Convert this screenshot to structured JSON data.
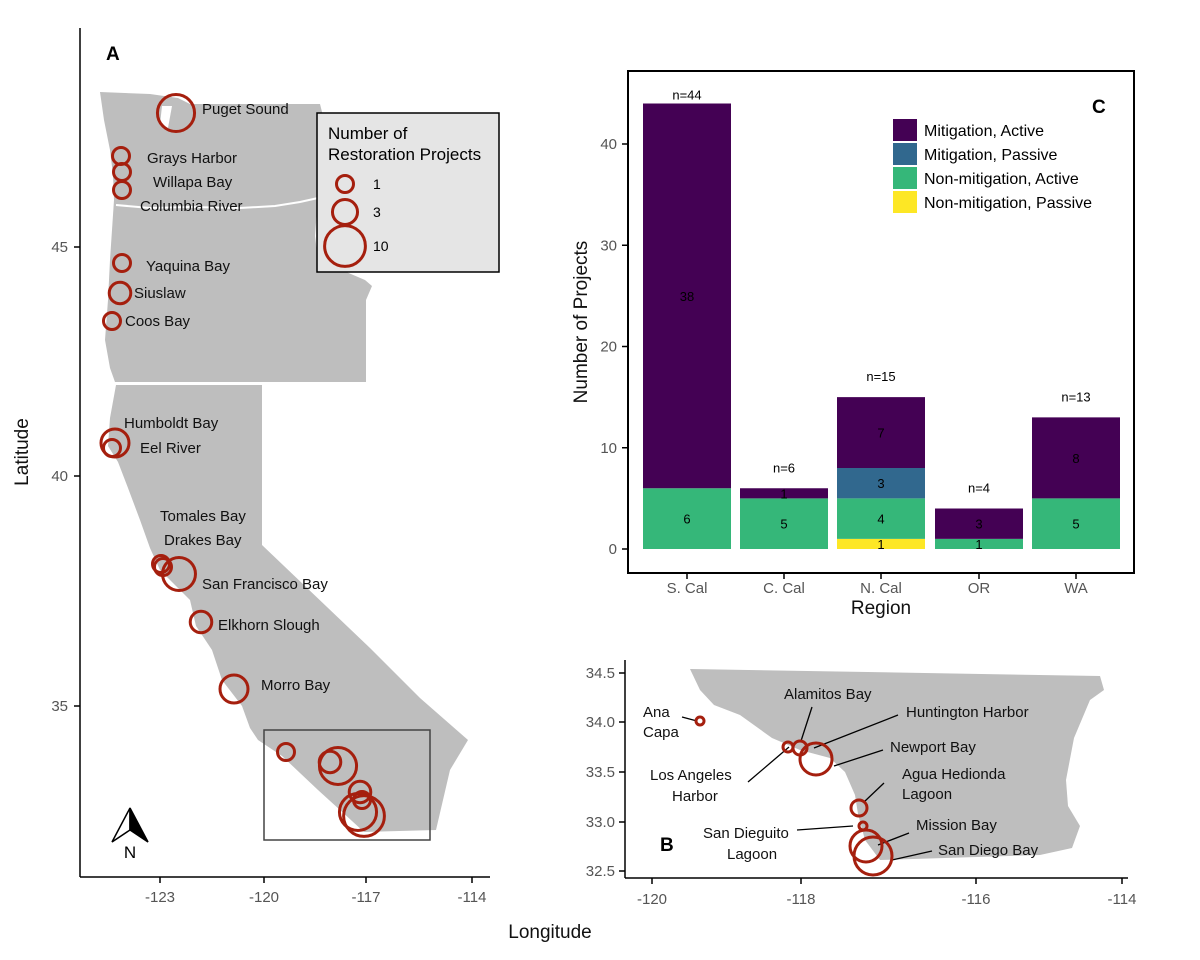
{
  "figure": {
    "panel_a": "A",
    "panel_b": "B",
    "panel_c": "C",
    "north_label": "N"
  },
  "colors": {
    "land": "#bebebe",
    "circle": "#a51f0e",
    "mitigation_active": "#440154",
    "mitigation_passive": "#31688e",
    "nonmitigation_active": "#35b779",
    "nonmitigation_passive": "#fde725"
  },
  "map_a": {
    "xlabel": "Longitude",
    "ylabel": "Latitude",
    "xticks": [
      "-123",
      "-120",
      "-117",
      "-114"
    ],
    "yticks": [
      "35",
      "40",
      "45"
    ],
    "legend": {
      "title_line1": "Number of",
      "title_line2": "Restoration Projects",
      "items": [
        {
          "label": "1",
          "value": 1
        },
        {
          "label": "3",
          "value": 3
        },
        {
          "label": "10",
          "value": 10
        }
      ]
    },
    "sites": [
      {
        "name": "Puget Sound",
        "projects": 8
      },
      {
        "name": "Grays Harbor",
        "projects": 1
      },
      {
        "name": "Willapa Bay",
        "projects": 1
      },
      {
        "name": "Columbia River",
        "projects": 1
      },
      {
        "name": "Yaquina Bay",
        "projects": 1
      },
      {
        "name": "Siuslaw",
        "projects": 2
      },
      {
        "name": "Coos Bay",
        "projects": 1
      },
      {
        "name": "Humboldt Bay",
        "projects": 4
      },
      {
        "name": "Eel River",
        "projects": 1
      },
      {
        "name": "Tomales Bay",
        "projects": 1
      },
      {
        "name": "Drakes Bay",
        "projects": 1
      },
      {
        "name": "San Francisco Bay",
        "projects": 6
      },
      {
        "name": "Elkhorn Slough",
        "projects": 2
      },
      {
        "name": "Morro Bay",
        "projects": 4
      }
    ]
  },
  "map_b": {
    "xticks": [
      "-120",
      "-118",
      "-116",
      "-114"
    ],
    "yticks": [
      "32.5",
      "33.0",
      "33.5",
      "34.0",
      "34.5"
    ],
    "labels": {
      "ana_capa_1": "Ana",
      "ana_capa_2": "Capa",
      "alamitos": "Alamitos Bay",
      "huntington": "Huntington Harbor",
      "newport": "Newport Bay",
      "agua_1": "Agua Hedionda",
      "agua_2": "Lagoon",
      "la_1": "Los Angeles",
      "la_2": "Harbor",
      "mission": "Mission Bay",
      "sandieguito_1": "San Dieguito",
      "sandieguito_2": "Lagoon",
      "sandiego": "San Diego Bay"
    }
  },
  "chart_data": {
    "type": "bar",
    "stacked": true,
    "xlabel": "Region",
    "ylabel": "Number of Projects",
    "ylim": [
      0,
      46
    ],
    "yticks": [
      0,
      10,
      20,
      30,
      40
    ],
    "categories": [
      "S. Cal",
      "C. Cal",
      "N. Cal",
      "OR",
      "WA"
    ],
    "totals": [
      "n=44",
      "n=6",
      "n=15",
      "n=4",
      "n=13"
    ],
    "legend_position": "top-right",
    "series": [
      {
        "name": "Non-mitigation, Passive",
        "key": "nonmitigation_passive",
        "values": [
          0,
          0,
          1,
          0,
          0
        ]
      },
      {
        "name": "Non-mitigation, Active",
        "key": "nonmitigation_active",
        "values": [
          6,
          5,
          4,
          1,
          5
        ]
      },
      {
        "name": "Mitigation, Passive",
        "key": "mitigation_passive",
        "values": [
          0,
          0,
          3,
          0,
          0
        ]
      },
      {
        "name": "Mitigation, Active",
        "key": "mitigation_active",
        "values": [
          38,
          1,
          7,
          3,
          8
        ]
      }
    ],
    "legend_order": [
      "Mitigation, Active",
      "Mitigation, Passive",
      "Non-mitigation, Active",
      "Non-mitigation, Passive"
    ]
  }
}
